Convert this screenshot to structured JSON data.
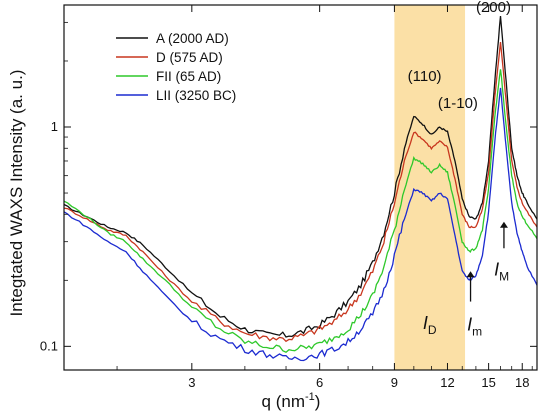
{
  "chart_data": {
    "type": "line",
    "xlabel": "q (nm",
    "xlabel_sup": "-1",
    "xlabel_tail": ")",
    "ylabel": "Integtated WAXS Intensity (a. u.)",
    "x_scale": "log",
    "y_scale": "log",
    "xlim": [
      1.5,
      19.5
    ],
    "ylim": [
      0.078,
      3.6
    ],
    "x_ticks": [
      3,
      6,
      9,
      12,
      15,
      18
    ],
    "y_ticks": [
      0.1,
      1
    ],
    "y_tick_labels": [
      "0.1",
      "1"
    ],
    "legend_position": "top-left",
    "highlight_band": {
      "x_range": [
        9,
        13.2
      ],
      "color": "#fbe0a6"
    },
    "series": [
      {
        "name": "A (2000 AD)",
        "color": "#111111",
        "x": [
          1.5,
          1.7,
          1.9,
          2.1,
          2.3,
          2.6,
          3.0,
          3.5,
          4.0,
          4.5,
          5.0,
          5.5,
          6.0,
          6.5,
          7.0,
          7.5,
          8.0,
          8.5,
          9.0,
          9.5,
          10.0,
          10.5,
          11.0,
          11.5,
          12.0,
          12.5,
          13.0,
          13.5,
          14.0,
          14.5,
          15.0,
          15.5,
          16.0,
          16.5,
          17.0,
          17.5,
          18.0,
          18.5,
          19.5
        ],
        "y": [
          0.44,
          0.39,
          0.35,
          0.33,
          0.29,
          0.23,
          0.175,
          0.137,
          0.12,
          0.113,
          0.112,
          0.117,
          0.125,
          0.14,
          0.16,
          0.19,
          0.24,
          0.33,
          0.5,
          0.8,
          1.12,
          1.03,
          0.92,
          1.0,
          0.95,
          0.7,
          0.47,
          0.39,
          0.38,
          0.45,
          0.7,
          1.6,
          3.2,
          1.6,
          0.8,
          0.6,
          0.5,
          0.45,
          0.38
        ]
      },
      {
        "name": "D (575 AD)",
        "color": "#c8361e",
        "x": [
          1.5,
          1.7,
          1.9,
          2.1,
          2.3,
          2.6,
          3.0,
          3.5,
          4.0,
          4.5,
          5.0,
          5.5,
          6.0,
          6.5,
          7.0,
          7.5,
          8.0,
          8.5,
          9.0,
          9.5,
          10.0,
          10.5,
          11.0,
          11.5,
          12.0,
          12.5,
          13.0,
          13.5,
          14.0,
          14.5,
          15.0,
          15.5,
          16.0,
          16.5,
          17.0,
          17.5,
          18.0,
          18.5,
          19.5
        ],
        "y": [
          0.43,
          0.38,
          0.34,
          0.32,
          0.27,
          0.21,
          0.16,
          0.13,
          0.115,
          0.11,
          0.108,
          0.112,
          0.12,
          0.13,
          0.148,
          0.175,
          0.22,
          0.3,
          0.45,
          0.7,
          0.95,
          0.88,
          0.8,
          0.86,
          0.81,
          0.58,
          0.4,
          0.35,
          0.35,
          0.42,
          0.62,
          1.35,
          2.45,
          1.3,
          0.7,
          0.53,
          0.45,
          0.41,
          0.35
        ]
      },
      {
        "name": "FII (65 AD)",
        "color": "#2ec82a",
        "x": [
          1.5,
          1.7,
          1.9,
          2.1,
          2.3,
          2.6,
          3.0,
          3.5,
          4.0,
          4.5,
          5.0,
          5.5,
          6.0,
          6.5,
          7.0,
          7.5,
          8.0,
          8.5,
          9.0,
          9.5,
          10.0,
          10.5,
          11.0,
          11.5,
          12.0,
          12.5,
          13.0,
          13.5,
          14.0,
          14.5,
          15.0,
          15.5,
          16.0,
          16.5,
          17.0,
          17.5,
          18.0,
          18.5,
          19.5
        ],
        "y": [
          0.46,
          0.39,
          0.33,
          0.3,
          0.25,
          0.2,
          0.15,
          0.12,
          0.105,
          0.1,
          0.097,
          0.098,
          0.102,
          0.11,
          0.12,
          0.14,
          0.17,
          0.23,
          0.34,
          0.52,
          0.72,
          0.68,
          0.62,
          0.67,
          0.62,
          0.44,
          0.3,
          0.27,
          0.28,
          0.34,
          0.52,
          1.1,
          1.85,
          1.0,
          0.6,
          0.45,
          0.39,
          0.36,
          0.31
        ]
      },
      {
        "name": "LII (3250 BC)",
        "color": "#1c2bd0",
        "x": [
          1.5,
          1.7,
          1.9,
          2.1,
          2.3,
          2.6,
          3.0,
          3.5,
          4.0,
          4.5,
          5.0,
          5.5,
          6.0,
          6.5,
          7.0,
          7.5,
          8.0,
          8.5,
          9.0,
          9.5,
          10.0,
          10.5,
          11.0,
          11.5,
          12.0,
          12.5,
          13.0,
          13.5,
          14.0,
          14.5,
          15.0,
          15.5,
          16.0,
          16.5,
          17.0,
          17.5,
          18.0,
          18.5,
          19.5
        ],
        "y": [
          0.41,
          0.35,
          0.3,
          0.27,
          0.22,
          0.17,
          0.13,
          0.108,
          0.097,
          0.092,
          0.088,
          0.089,
          0.092,
          0.097,
          0.105,
          0.12,
          0.14,
          0.18,
          0.26,
          0.38,
          0.52,
          0.5,
          0.46,
          0.5,
          0.47,
          0.32,
          0.22,
          0.2,
          0.21,
          0.26,
          0.41,
          0.85,
          1.5,
          0.8,
          0.45,
          0.33,
          0.27,
          0.23,
          0.19
        ]
      }
    ],
    "annotations": {
      "peaks": [
        {
          "text": "(110)",
          "x": 10.6,
          "y": 1.62
        },
        {
          "text": "(1-10)",
          "x": 12.7,
          "y": 1.22
        },
        {
          "text": "(200)",
          "x": 15.4,
          "y": 3.35
        }
      ],
      "markers": [
        {
          "main": "I",
          "sub": "D",
          "x": 10.9,
          "y": 0.12
        },
        {
          "main": "I",
          "sub": "m",
          "x": 13.9,
          "y": 0.118
        },
        {
          "main": "I",
          "sub": "M",
          "x": 16.1,
          "y": 0.21
        }
      ],
      "arrows": [
        {
          "x": 13.6,
          "y_from": 0.16,
          "y_to": 0.22
        },
        {
          "x": 16.3,
          "y_from": 0.28,
          "y_to": 0.37
        }
      ]
    }
  }
}
